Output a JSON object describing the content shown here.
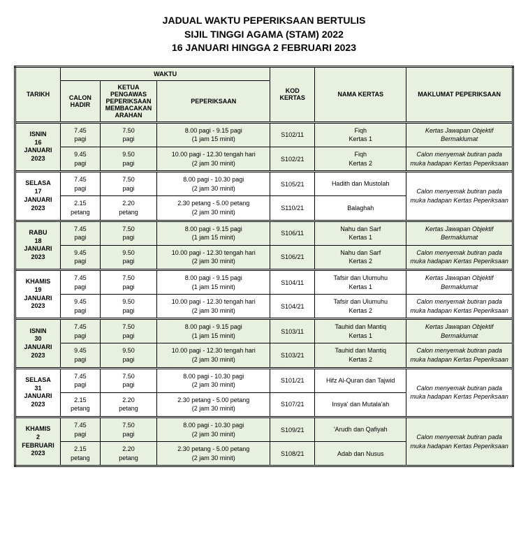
{
  "title_lines": [
    "JADUAL WAKTU PEPERIKSAAN BERTULIS",
    "SIJIL TINGGI AGAMA (STAM) 2022",
    "16 JANUARI HINGGA 2 FEBRUARI 2023"
  ],
  "headers": {
    "tarikh": "TARIKH",
    "waktu": "WAKTU",
    "calon_hadir": "CALON HADIR",
    "ketua_pengawas": "KETUA PENGAWAS PEPERIKSAAN MEMBACAKAN ARAHAN",
    "peperiksaan": "PEPERIKSAAN",
    "kod_kertas": "KOD KERTAS",
    "nama_kertas": "NAMA KERTAS",
    "maklumat": "MAKLUMAT PEPERIKSAAN"
  },
  "info_objektif": "Kertas Jawapan Objektif Bermaklumat",
  "info_semak": "Calon menyemak butiran pada muka hadapan Kertas Peperiksaan",
  "days": [
    {
      "tarikh": "ISNIN\n16\nJANUARI\n2023",
      "row_class": "green-row",
      "rows": [
        {
          "calon": "7.45\npagi",
          "ketua": "7.50\npagi",
          "pep": "8.00 pagi - 9.15 pagi\n(1 jam 15 minit)",
          "kod": "S102/11",
          "nama": "Fiqh\nKertas 1",
          "info": "Kertas Jawapan Objektif Bermaklumat",
          "merge_info": false
        },
        {
          "calon": "9.45\npagi",
          "ketua": "9.50\npagi",
          "pep": "10.00 pagi - 12.30 tengah hari\n(2 jam 30 minit)",
          "kod": "S102/21",
          "nama": "Fiqh\nKertas 2",
          "info": "Calon menyemak butiran pada muka hadapan Kertas Peperiksaan",
          "merge_info": false
        }
      ]
    },
    {
      "tarikh": "SELASA\n17\nJANUARI\n2023",
      "row_class": "white-row",
      "rows": [
        {
          "calon": "7.45\npagi",
          "ketua": "7.50\npagi",
          "pep": "8.00 pagi - 10.30 pagi\n(2 jam 30 minit)",
          "kod": "S105/21",
          "nama": "Hadith dan Mustolah",
          "info": "Calon menyemak butiran pada muka hadapan Kertas Peperiksaan",
          "merge_info": true
        },
        {
          "calon": "2.15\npetang",
          "ketua": "2.20\npetang",
          "pep": "2.30 petang - 5.00 petang\n(2 jam 30 minit)",
          "kod": "S110/21",
          "nama": "Balaghah",
          "info": "",
          "merge_info": false
        }
      ]
    },
    {
      "tarikh": "RABU\n18\nJANUARI\n2023",
      "row_class": "green-row",
      "rows": [
        {
          "calon": "7.45\npagi",
          "ketua": "7.50\npagi",
          "pep": "8.00 pagi - 9.15 pagi\n(1 jam 15 minit)",
          "kod": "S106/11",
          "nama": "Nahu dan Sarf\nKertas 1",
          "info": "Kertas Jawapan Objektif Bermaklumat",
          "merge_info": false
        },
        {
          "calon": "9.45\npagi",
          "ketua": "9.50\npagi",
          "pep": "10.00 pagi - 12.30 tengah hari\n(2 jam 30 minit)",
          "kod": "S106/21",
          "nama": "Nahu dan Sarf\nKertas 2",
          "info": "Calon menyemak butiran pada muka hadapan Kertas Peperiksaan",
          "merge_info": false
        }
      ]
    },
    {
      "tarikh": "KHAMIS\n19\nJANUARI\n2023",
      "row_class": "white-row",
      "rows": [
        {
          "calon": "7.45\npagi",
          "ketua": "7.50\npagi",
          "pep": "8.00 pagi - 9.15 pagi\n(1 jam 15 minit)",
          "kod": "S104/11",
          "nama": "Tafsir dan Ulumuhu\nKertas 1",
          "info": "Kertas Jawapan Objektif Bermaklumat",
          "merge_info": false
        },
        {
          "calon": "9.45\npagi",
          "ketua": "9.50\npagi",
          "pep": "10.00 pagi - 12.30 tengah hari\n(2 jam 30 minit)",
          "kod": "S104/21",
          "nama": "Tafsir dan Ulumuhu\nKertas 2",
          "info": "Calon menyemak butiran pada muka hadapan Kertas Peperiksaan",
          "merge_info": false
        }
      ]
    },
    {
      "tarikh": "ISNIN\n30\nJANUARI\n2023",
      "row_class": "green-row",
      "rows": [
        {
          "calon": "7.45\npagi",
          "ketua": "7.50\npagi",
          "pep": "8.00 pagi - 9.15 pagi\n(1 jam 15 minit)",
          "kod": "S103/11",
          "nama": "Tauhid dan Mantiq\nKertas 1",
          "info": "Kertas Jawapan Objektif Bermaklumat",
          "merge_info": false
        },
        {
          "calon": "9.45\npagi",
          "ketua": "9.50\npagi",
          "pep": "10.00 pagi - 12.30 tengah hari\n(2 jam 30 minit)",
          "kod": "S103/21",
          "nama": "Tauhid dan Mantiq\nKertas 2",
          "info": "Calon menyemak butiran pada muka hadapan Kertas Peperiksaan",
          "merge_info": false
        }
      ]
    },
    {
      "tarikh": "SELASA\n31\nJANUARI\n2023",
      "row_class": "white-row",
      "rows": [
        {
          "calon": "7.45\npagi",
          "ketua": "7.50\npagi",
          "pep": "8.00 pagi - 10.30 pagi\n(2 jam 30 minit)",
          "kod": "S101/21",
          "nama": "Hifz Al-Quran dan Tajwid",
          "info": "Calon menyemak butiran pada muka hadapan Kertas Peperiksaan",
          "merge_info": true
        },
        {
          "calon": "2.15\npetang",
          "ketua": "2.20\npetang",
          "pep": "2.30 petang - 5.00 petang\n(2 jam 30 minit)",
          "kod": "S107/21",
          "nama": "Insya' dan Mutala'ah",
          "info": "",
          "merge_info": false
        }
      ]
    },
    {
      "tarikh": "KHAMIS\n2\nFEBRUARI\n2023",
      "row_class": "green-row",
      "rows": [
        {
          "calon": "7.45\npagi",
          "ketua": "7.50\npagi",
          "pep": "8.00 pagi - 10.30 pagi\n(2 jam 30 minit)",
          "kod": "S109/21",
          "nama": "'Arudh dan Qafiyah",
          "info": "Calon menyemak butiran pada muka hadapan Kertas Peperiksaan",
          "merge_info": true
        },
        {
          "calon": "2.15\npetang",
          "ketua": "2.20\npetang",
          "pep": "2.30 petang - 5.00 petang\n(2 jam 30 minit)",
          "kod": "S108/21",
          "nama": "Adab dan Nusus",
          "info": "",
          "merge_info": false
        }
      ]
    }
  ]
}
